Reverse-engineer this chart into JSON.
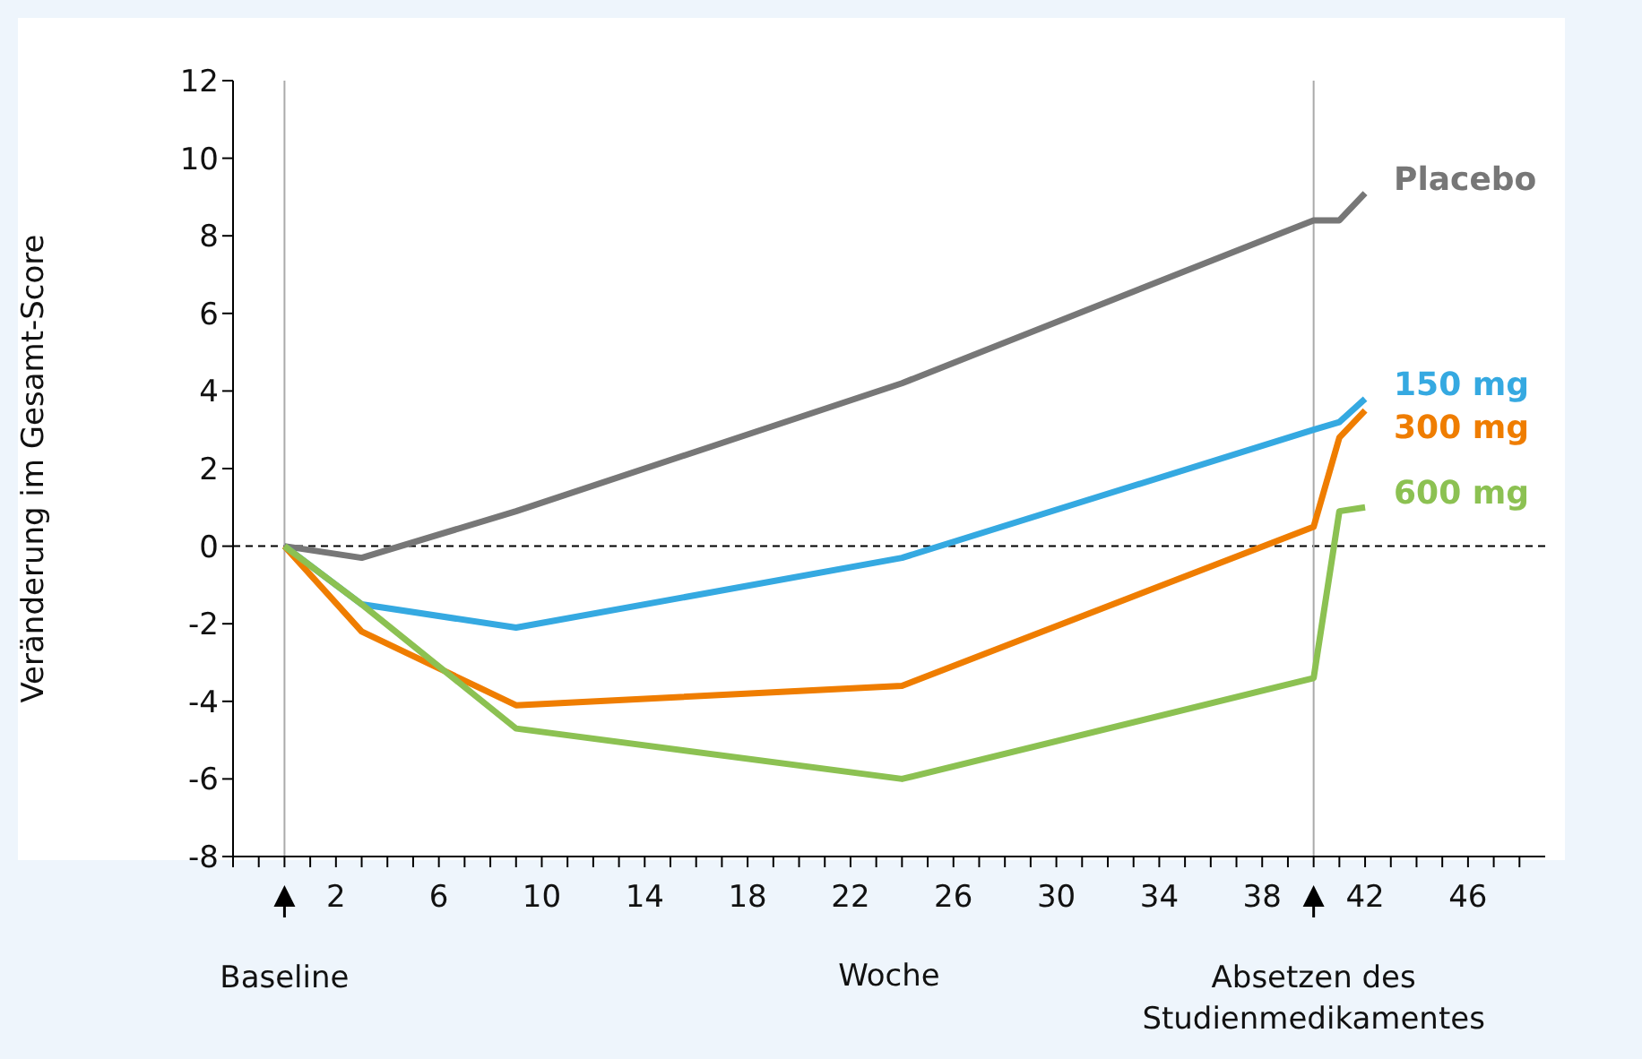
{
  "chart_data": {
    "type": "line",
    "xlabel": "Woche",
    "ylabel": "Veränderung im Gesamt-Score",
    "x": [
      0,
      3,
      9,
      24,
      40,
      41,
      42
    ],
    "series": [
      {
        "name": "Placebo",
        "color": "#777777",
        "values": [
          0,
          -0.3,
          0.9,
          4.2,
          8.4,
          8.4,
          9.1
        ]
      },
      {
        "name": "150 mg",
        "color": "#35a9e1",
        "values": [
          0,
          -1.5,
          -2.1,
          -0.3,
          3.0,
          3.2,
          3.8
        ]
      },
      {
        "name": "300 mg",
        "color": "#ef7d00",
        "values": [
          0,
          -2.2,
          -4.1,
          -3.6,
          0.5,
          2.8,
          3.5
        ]
      },
      {
        "name": "600 mg",
        "color": "#8cc152",
        "values": [
          0,
          -1.5,
          -4.7,
          -6.0,
          -3.4,
          0.9,
          1.0
        ]
      }
    ],
    "xlim": [
      -2,
      49
    ],
    "xticks": [
      {
        "value": -2,
        "label": null
      },
      {
        "value": -1,
        "label": null
      },
      {
        "value": 0,
        "label": null
      },
      {
        "value": 1,
        "label": null
      },
      2,
      {
        "value": 3,
        "label": null
      },
      {
        "value": 4,
        "label": null
      },
      {
        "value": 5,
        "label": null
      },
      6,
      {
        "value": 7,
        "label": null
      },
      {
        "value": 8,
        "label": null
      },
      {
        "value": 9,
        "label": null
      },
      10,
      {
        "value": 11,
        "label": null
      },
      {
        "value": 12,
        "label": null
      },
      {
        "value": 13,
        "label": null
      },
      14,
      {
        "value": 15,
        "label": null
      },
      {
        "value": 16,
        "label": null
      },
      {
        "value": 17,
        "label": null
      },
      18,
      {
        "value": 19,
        "label": null
      },
      {
        "value": 20,
        "label": null
      },
      {
        "value": 21,
        "label": null
      },
      22,
      {
        "value": 23,
        "label": null
      },
      {
        "value": 24,
        "label": null
      },
      {
        "value": 25,
        "label": null
      },
      26,
      {
        "value": 27,
        "label": null
      },
      {
        "value": 28,
        "label": null
      },
      {
        "value": 29,
        "label": null
      },
      30,
      {
        "value": 31,
        "label": null
      },
      {
        "value": 32,
        "label": null
      },
      {
        "value": 33,
        "label": null
      },
      34,
      {
        "value": 35,
        "label": null
      },
      {
        "value": 36,
        "label": null
      },
      {
        "value": 37,
        "label": null
      },
      38,
      {
        "value": 39,
        "label": null
      },
      {
        "value": 40,
        "label": null
      },
      {
        "value": 41,
        "label": null
      },
      42,
      {
        "value": 43,
        "label": null
      },
      {
        "value": 44,
        "label": null
      },
      {
        "value": 45,
        "label": null
      },
      46,
      {
        "value": 47,
        "label": null
      },
      {
        "value": 48,
        "label": null
      }
    ],
    "ylim": [
      -8,
      12
    ],
    "yticks": [
      -8,
      -6,
      -4,
      -2,
      0,
      2,
      4,
      6,
      8,
      10,
      12
    ],
    "ref_lines": [
      {
        "axis": "y",
        "value": 0,
        "color": "#000000",
        "line_style": "dashed"
      },
      {
        "axis": "x",
        "value": 0,
        "color": "#aaaaaa"
      },
      {
        "axis": "x",
        "value": 40,
        "color": "#aaaaaa"
      }
    ],
    "annotations": [
      "Baseline",
      "Absetzen des Studienmedikamentes"
    ],
    "grid": false,
    "legend": false,
    "marker": "none",
    "line_style": "solid"
  }
}
